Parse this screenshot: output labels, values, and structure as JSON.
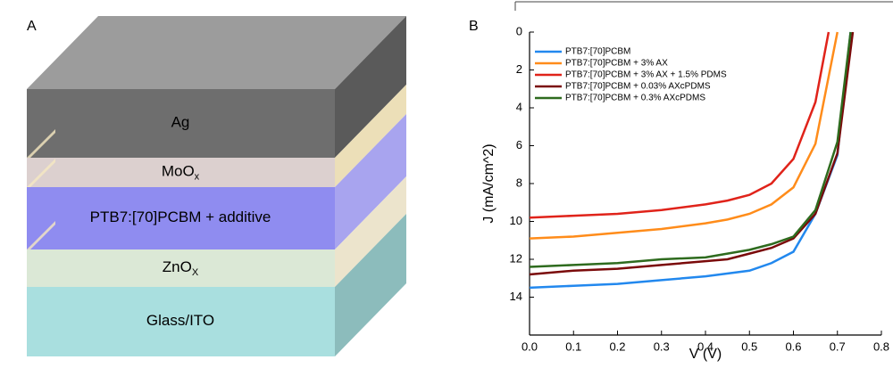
{
  "diagram": {
    "panel_label": "A",
    "layers": [
      {
        "label": "Ag"
      },
      {
        "label": "MoO",
        "subscript": "x"
      },
      {
        "label": "PTB7:[70]PCBM + additive"
      },
      {
        "label": "ZnO",
        "subscript": "X"
      },
      {
        "label": "Glass/ITO"
      }
    ]
  },
  "chart_data": {
    "type": "line",
    "panel_label": "B",
    "x_label": "V (V)",
    "y_label": "J (mA/cm^2)",
    "xlim": [
      0,
      0.8
    ],
    "ylim": [
      0,
      16
    ],
    "y_inverted": true,
    "xticks": [
      {
        "value": 0,
        "label": "0.0"
      },
      0.1,
      0.2,
      0.3,
      0.4,
      0.5,
      0.6,
      0.7,
      0.8
    ],
    "yticks": [
      0,
      2,
      4,
      6,
      8,
      10,
      12,
      14
    ],
    "legend": "upper left",
    "series": [
      {
        "name": "PTB7:[70]PCBM",
        "color": "#2288ee",
        "x": [
          0,
          0.1,
          0.2,
          0.3,
          0.4,
          0.5,
          0.55,
          0.6,
          0.65,
          0.7,
          0.73
        ],
        "values": [
          13.5,
          13.4,
          13.3,
          13.1,
          12.9,
          12.6,
          12.2,
          11.6,
          9.6,
          6.5,
          0
        ]
      },
      {
        "name": "PTB7:[70]PCBM + 3% AX",
        "color": "#ff8c1a",
        "x": [
          0,
          0.1,
          0.2,
          0.3,
          0.4,
          0.45,
          0.5,
          0.55,
          0.6,
          0.65,
          0.7
        ],
        "values": [
          10.9,
          10.8,
          10.6,
          10.4,
          10.1,
          9.9,
          9.6,
          9.1,
          8.2,
          5.9,
          0
        ]
      },
      {
        "name": "PTB7:[70]PCBM + 3% AX + 1.5% PDMS",
        "color": "#e0231a",
        "x": [
          0,
          0.1,
          0.2,
          0.3,
          0.4,
          0.45,
          0.5,
          0.55,
          0.6,
          0.65,
          0.68
        ],
        "values": [
          9.8,
          9.7,
          9.6,
          9.4,
          9.1,
          8.9,
          8.6,
          8.0,
          6.7,
          3.7,
          0
        ]
      },
      {
        "name": "PTB7:[70]PCBM + 0.03% AXcPDMS",
        "color": "#7a0a0a",
        "x": [
          0,
          0.1,
          0.2,
          0.3,
          0.4,
          0.45,
          0.5,
          0.55,
          0.6,
          0.65,
          0.7,
          0.735
        ],
        "values": [
          12.8,
          12.6,
          12.5,
          12.3,
          12.1,
          12.0,
          11.7,
          11.4,
          10.9,
          9.6,
          6.4,
          0
        ]
      },
      {
        "name": "PTB7:[70]PCBM + 0.3% AXcPDMS",
        "color": "#2e6b1e",
        "x": [
          0,
          0.1,
          0.2,
          0.3,
          0.4,
          0.45,
          0.5,
          0.55,
          0.6,
          0.65,
          0.7,
          0.73
        ],
        "values": [
          12.4,
          12.3,
          12.2,
          12.0,
          11.9,
          11.7,
          11.5,
          11.2,
          10.8,
          9.4,
          5.8,
          0
        ]
      }
    ]
  }
}
